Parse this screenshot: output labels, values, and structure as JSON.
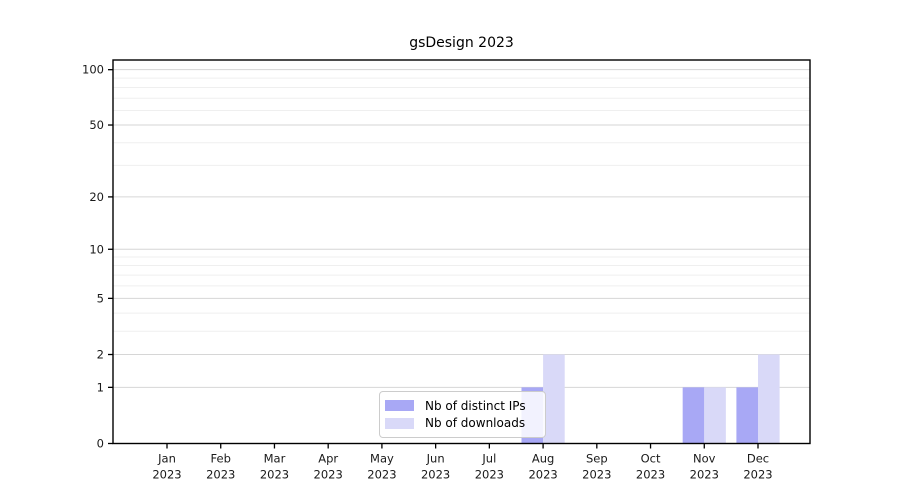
{
  "chart_data": {
    "type": "bar",
    "title": "gsDesign 2023",
    "categories": [
      {
        "month": "Jan",
        "year": "2023"
      },
      {
        "month": "Feb",
        "year": "2023"
      },
      {
        "month": "Mar",
        "year": "2023"
      },
      {
        "month": "Apr",
        "year": "2023"
      },
      {
        "month": "May",
        "year": "2023"
      },
      {
        "month": "Jun",
        "year": "2023"
      },
      {
        "month": "Jul",
        "year": "2023"
      },
      {
        "month": "Aug",
        "year": "2023"
      },
      {
        "month": "Sep",
        "year": "2023"
      },
      {
        "month": "Oct",
        "year": "2023"
      },
      {
        "month": "Nov",
        "year": "2023"
      },
      {
        "month": "Dec",
        "year": "2023"
      }
    ],
    "series": [
      {
        "name": "Nb of distinct IPs",
        "color": "#a8a8f5",
        "values": [
          0,
          0,
          0,
          0,
          0,
          0,
          0,
          1,
          0,
          0,
          1,
          1
        ]
      },
      {
        "name": "Nb of downloads",
        "color": "#d9d9f8",
        "values": [
          0,
          0,
          0,
          0,
          0,
          0,
          0,
          2,
          0,
          0,
          1,
          2
        ]
      }
    ],
    "y_ticks": [
      0,
      1,
      2,
      5,
      10,
      20,
      50,
      100
    ],
    "y_minor": [
      3,
      4,
      6,
      7,
      8,
      9,
      30,
      40,
      60,
      70,
      80,
      90
    ],
    "scale": "log1p",
    "ylim": [
      0,
      113
    ],
    "xlabel": "",
    "ylabel": "",
    "grid": true,
    "legend_position": "inside-bottom-center",
    "colors": {
      "axis": "#000000",
      "grid_major": "#d6d6d6",
      "grid_minor": "#efefef",
      "tick_text": "#1a1a1a",
      "legend_bg": "rgba(255,255,255,0.85)",
      "legend_border": "#cccccc"
    }
  }
}
